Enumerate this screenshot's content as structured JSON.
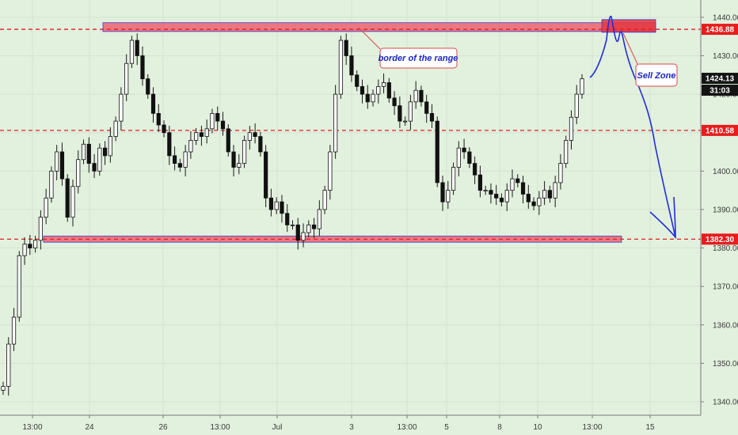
{
  "chart_data": {
    "type": "candlestick",
    "ylim": [
      1336.5,
      1444.5
    ],
    "y_ticks": [
      1340,
      1350,
      1360,
      1370,
      1380,
      1390,
      1400,
      1410,
      1420,
      1430,
      1440
    ],
    "y_tick_labels": [
      "1340.00",
      "1350.00",
      "1360.00",
      "1370.00",
      "1380.00",
      "1390.00",
      "1400.00",
      "1410.00",
      "1420.00",
      "1430.00",
      "1440.00"
    ],
    "x_tick_labels": [
      "13:00",
      "24",
      "26",
      "13:00",
      "Jul",
      "3",
      "13:00",
      "5",
      "8",
      "10",
      "13:00",
      "15"
    ],
    "levels": [
      {
        "value": 1436.88,
        "label": "1436.88"
      },
      {
        "value": 1410.58,
        "label": "1410.58"
      },
      {
        "value": 1382.3,
        "label": "1382.30"
      }
    ],
    "last_price": {
      "label": "1424.13",
      "countdown": "31:03"
    },
    "zones": [
      {
        "top": 1438.6,
        "bottom": 1436.3
      },
      {
        "top": 1383.1,
        "bottom": 1381.5
      },
      {
        "top": 1439.4,
        "bottom": 1436.1
      }
    ],
    "annotations": [
      "border of the range",
      "Sell Zone"
    ],
    "candles_close": [
      1344,
      1355,
      1362,
      1378,
      1381,
      1380,
      1382,
      1388,
      1393,
      1400,
      1405,
      1398,
      1388,
      1396,
      1403,
      1407,
      1402,
      1400,
      1406,
      1404,
      1409,
      1413,
      1420,
      1428,
      1434,
      1430,
      1424,
      1420,
      1415,
      1412,
      1410,
      1404,
      1402,
      1401,
      1405,
      1408,
      1410,
      1409,
      1411,
      1415,
      1413,
      1411,
      1405,
      1401,
      1402,
      1408,
      1410,
      1409,
      1405,
      1393,
      1390,
      1392,
      1389,
      1386,
      1386,
      1382,
      1384,
      1386,
      1385,
      1390,
      1395,
      1405,
      1420,
      1434,
      1430,
      1425,
      1422,
      1420,
      1418,
      1420,
      1422,
      1423,
      1419,
      1417,
      1413,
      1413,
      1418,
      1421,
      1418,
      1415,
      1413,
      1397,
      1392,
      1395,
      1401,
      1406,
      1405,
      1402,
      1399,
      1395,
      1395,
      1394,
      1393,
      1392,
      1395,
      1398,
      1397,
      1394,
      1392,
      1391,
      1393,
      1395,
      1393,
      1397,
      1402,
      1408,
      1414,
      1420,
      1424
    ]
  }
}
